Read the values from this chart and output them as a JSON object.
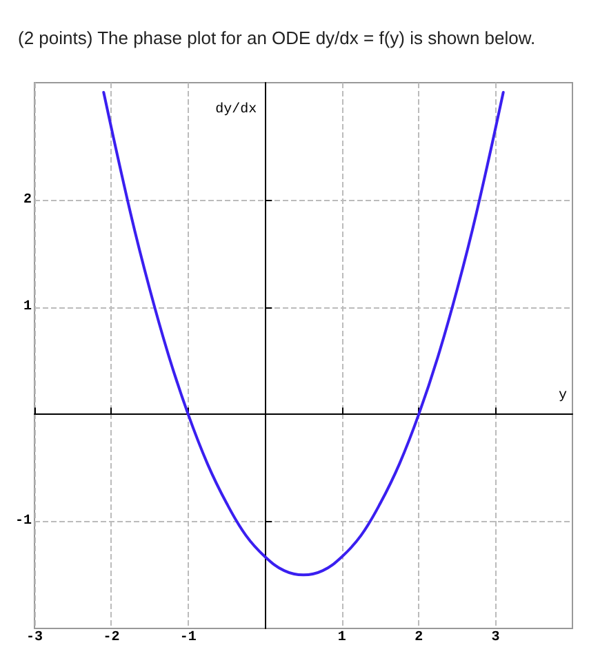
{
  "chart_data": {
    "type": "line",
    "title": "(2 points) The phase plot for an ODE dy/dx = f(y) is shown below.",
    "xlabel": "y",
    "ylabel": "dy/dx",
    "x": [
      -2.1,
      -1.75,
      -1.5,
      -1.25,
      -1,
      -0.75,
      -0.5,
      -0.25,
      0,
      0.25,
      0.5,
      0.75,
      1,
      1.25,
      1.5,
      1.75,
      2,
      2.25,
      2.5,
      2.75,
      3.1
    ],
    "series": [
      {
        "color": "#3a1ff0",
        "values": [
          3.01,
          1.88,
          1.17,
          0.54,
          0,
          -0.46,
          -0.83,
          -1.13,
          -1.33,
          -1.46,
          -1.5,
          -1.46,
          -1.33,
          -1.13,
          -0.83,
          -0.46,
          0,
          0.54,
          1.17,
          1.88,
          3.01
        ]
      }
    ],
    "xlim": [
      -3,
      4
    ],
    "ylim": [
      -2,
      3.1
    ],
    "xticks": [
      -3,
      -2,
      -1,
      1,
      2,
      3
    ],
    "yticks": [
      -1,
      1,
      2
    ],
    "grid": true,
    "marker": "none",
    "line_style": "solid"
  }
}
